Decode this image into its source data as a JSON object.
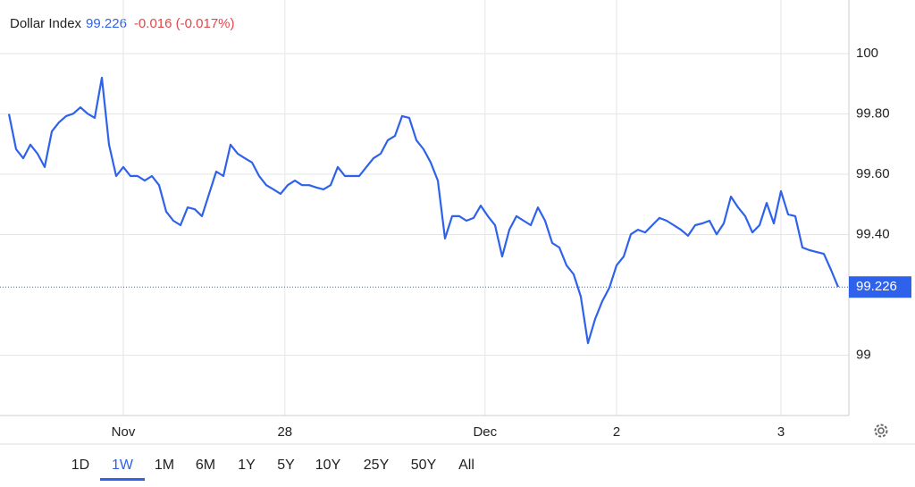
{
  "header": {
    "name": "Dollar Index",
    "change": "-0.016 (-0.017%)"
  },
  "chart_data": {
    "type": "line",
    "series": [
      {
        "name": "Dollar Index",
        "color": "#2f62ea",
        "values": [
          99.8,
          99.683,
          99.653,
          99.698,
          99.668,
          99.624,
          99.742,
          99.772,
          99.793,
          99.801,
          99.822,
          99.801,
          99.787,
          99.92,
          99.698,
          99.594,
          99.624,
          99.594,
          99.594,
          99.579,
          99.594,
          99.564,
          99.476,
          99.446,
          99.431,
          99.49,
          99.484,
          99.461,
          99.535,
          99.609,
          99.594,
          99.698,
          99.668,
          99.653,
          99.639,
          99.594,
          99.564,
          99.55,
          99.535,
          99.564,
          99.579,
          99.564,
          99.564,
          99.556,
          99.55,
          99.564,
          99.624,
          99.594,
          99.594,
          99.594,
          99.624,
          99.653,
          99.668,
          99.713,
          99.727,
          99.793,
          99.787,
          99.713,
          99.683,
          99.639,
          99.579,
          99.387,
          99.461,
          99.461,
          99.446,
          99.455,
          99.496,
          99.461,
          99.431,
          99.327,
          99.416,
          99.461,
          99.446,
          99.431,
          99.49,
          99.446,
          99.372,
          99.357,
          99.298,
          99.268,
          99.194,
          99.04,
          99.12,
          99.179,
          99.224,
          99.298,
          99.327,
          99.401,
          99.416,
          99.407,
          99.431,
          99.455,
          99.446,
          99.431,
          99.416,
          99.396,
          99.431,
          99.437,
          99.446,
          99.401,
          99.437,
          99.526,
          99.49,
          99.461,
          99.407,
          99.431,
          99.505,
          99.437,
          99.544,
          99.467,
          99.461,
          99.357,
          99.348,
          99.342,
          99.336,
          99.283,
          99.226
        ]
      }
    ],
    "last_price": 99.226,
    "xlim": [
      0,
      117.5
    ],
    "xticks": [
      {
        "value": 16,
        "label": "Nov"
      },
      {
        "value": 38.6,
        "label": "28"
      },
      {
        "value": 66.6,
        "label": "Dec"
      },
      {
        "value": 85,
        "label": "2"
      },
      {
        "value": 108,
        "label": "3"
      }
    ],
    "ylim": [
      98.8,
      100.16
    ],
    "yticks": [
      99,
      {
        "value": 99.4,
        "label": "99.40"
      },
      {
        "value": 99.6,
        "label": "99.60"
      },
      {
        "value": 99.8,
        "label": "99.80"
      },
      100
    ],
    "grid": true
  },
  "range_buttons": [
    "1D",
    "1W",
    "1M",
    "6M",
    "1Y",
    "5Y",
    "10Y",
    "25Y",
    "50Y",
    "All"
  ],
  "active_range_index": 1
}
